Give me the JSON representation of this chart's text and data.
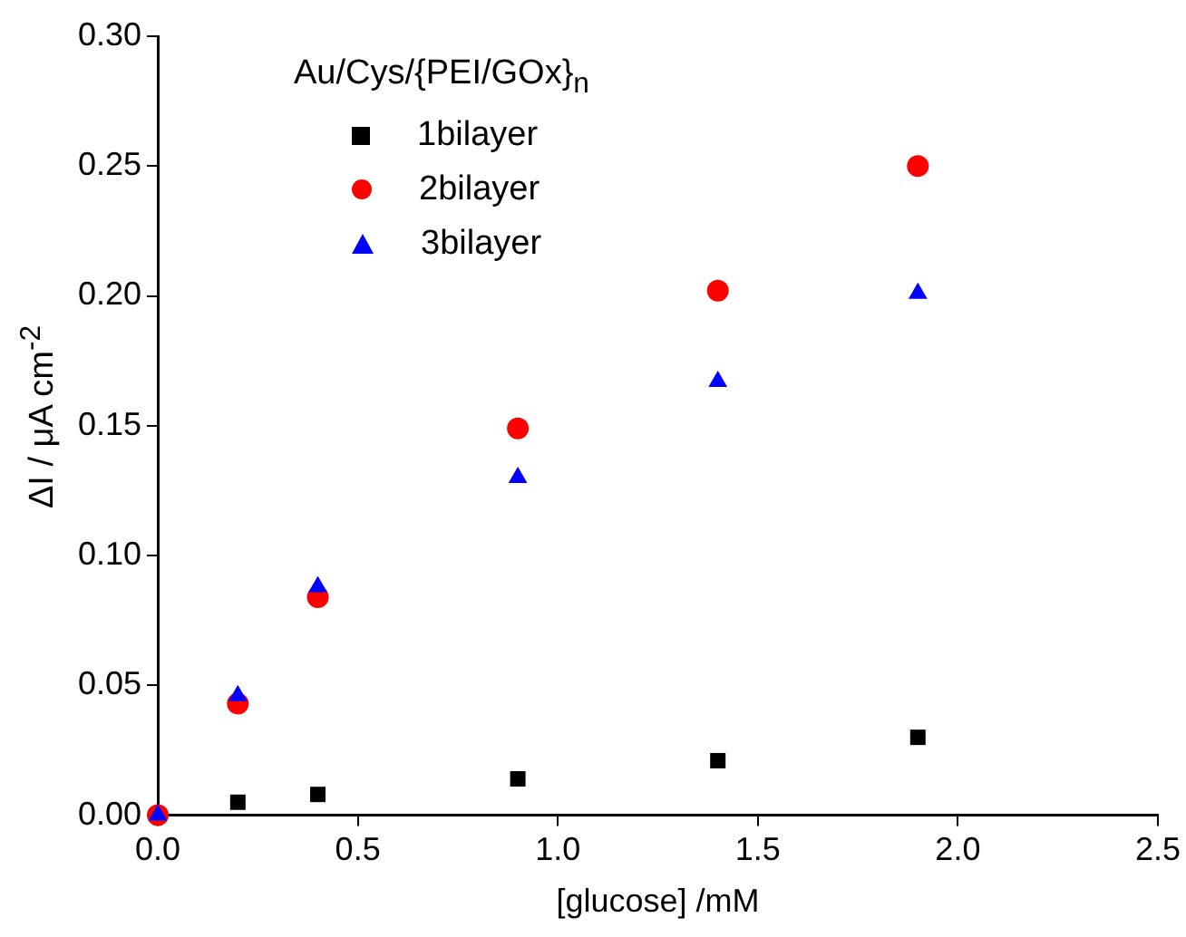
{
  "chart_data": {
    "type": "scatter",
    "xlabel": "[glucose] /mM",
    "ylabel": "ΔI / μA cm$^{-2}$",
    "legend_title": "Au/Cys/{PEI/GOx}$_{n}$",
    "legend": "top left",
    "grid": false,
    "x": [
      0,
      0.2,
      0.4,
      0.9,
      1.4,
      1.9
    ],
    "xlim": [
      0,
      2.5
    ],
    "xticks": [
      {
        "value": 0,
        "label": "0.0"
      },
      {
        "value": 0.5,
        "label": "0.5"
      },
      {
        "value": 1,
        "label": "1.0"
      },
      {
        "value": 1.5,
        "label": "1.5"
      },
      {
        "value": 2,
        "label": "2.0"
      },
      {
        "value": 2.5,
        "label": "2.5"
      }
    ],
    "ylim": [
      0,
      0.3
    ],
    "yticks": [
      {
        "value": 0,
        "label": "0.00"
      },
      {
        "value": 0.05,
        "label": "0.05"
      },
      {
        "value": 0.1,
        "label": "0.10"
      },
      {
        "value": 0.15,
        "label": "0.15"
      },
      {
        "value": 0.2,
        "label": "0.20"
      },
      {
        "value": 0.25,
        "label": "0.25"
      },
      {
        "value": 0.3,
        "label": "0.30"
      }
    ],
    "series": [
      {
        "name": "1bilayer",
        "color": "#000000",
        "marker": "square",
        "values": [
          null,
          0.005,
          0.008,
          0.014,
          0.021,
          0.03
        ]
      },
      {
        "name": "2bilayer",
        "color": "#ff0000",
        "marker": "circle",
        "values": [
          0,
          0.043,
          0.084,
          0.149,
          0.202,
          0.25
        ]
      },
      {
        "name": "3bilayer",
        "color": "#0000ff",
        "marker": "triangle",
        "values": [
          0,
          0.046,
          0.088,
          0.13,
          0.167,
          0.201
        ]
      }
    ]
  }
}
